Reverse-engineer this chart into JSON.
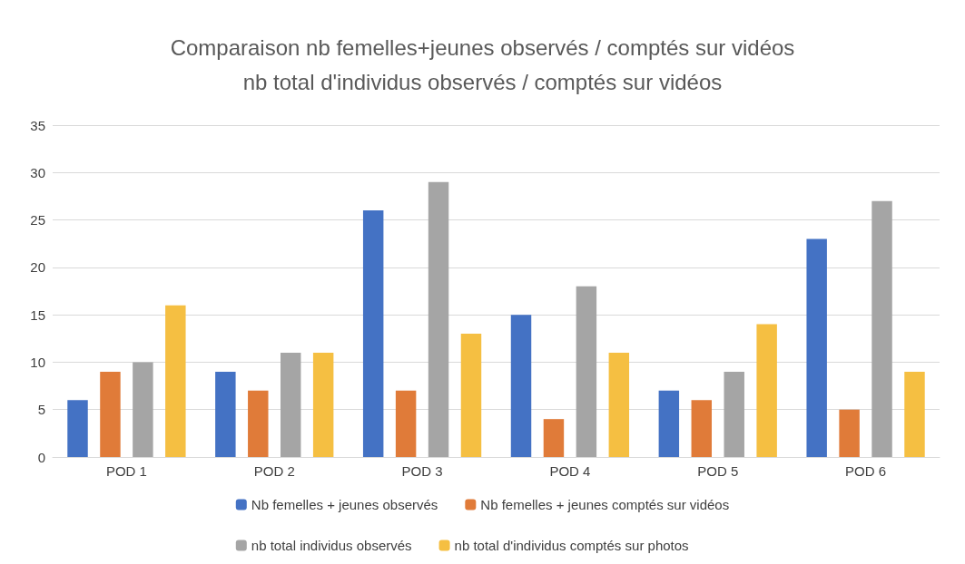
{
  "chart_data": {
    "type": "bar",
    "title": "Comparaison nb femelles+jeunes observés / comptés sur vidéos\nnb total d'individus observés / comptés sur vidéos",
    "categories": [
      "POD 1",
      "POD 2",
      "POD 3",
      "POD 4",
      "POD 5",
      "POD 6"
    ],
    "series": [
      {
        "name": "Nb femelles + jeunes observés",
        "color": "#4472c4",
        "values": [
          6,
          9,
          26,
          15,
          7,
          23
        ]
      },
      {
        "name": "Nb femelles + jeunes comptés sur vidéos",
        "color": "#e07b39",
        "values": [
          9,
          7,
          7,
          4,
          6,
          5
        ]
      },
      {
        "name": "nb total individus observés",
        "color": "#a5a5a5",
        "values": [
          10,
          11,
          29,
          18,
          9,
          27
        ]
      },
      {
        "name": "nb total d'individus comptés sur photos",
        "color": "#f5bf42",
        "values": [
          16,
          11,
          13,
          11,
          14,
          9
        ]
      }
    ],
    "ylim": [
      0,
      35
    ],
    "yticks": [
      0,
      5,
      10,
      15,
      20,
      25,
      30,
      35
    ],
    "grid": "y",
    "legend": "bottom"
  }
}
